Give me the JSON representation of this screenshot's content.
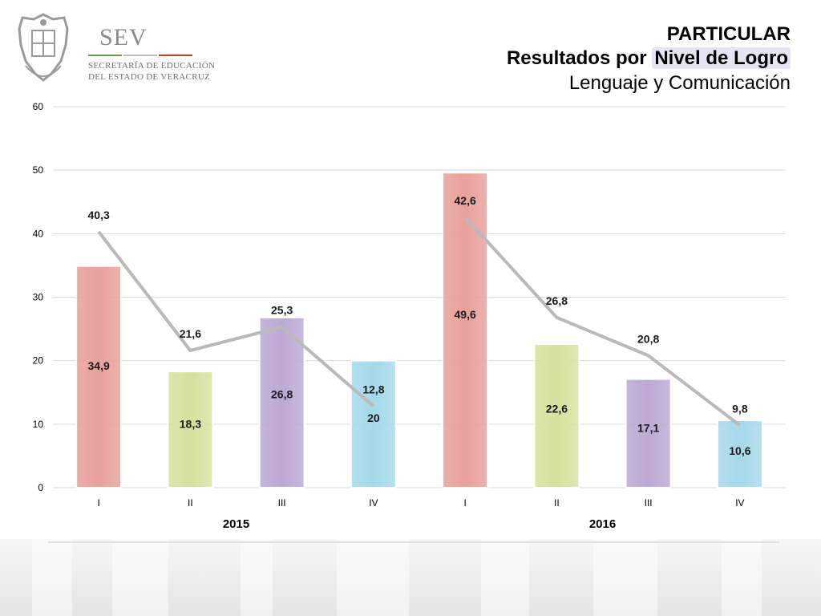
{
  "logo": {
    "name": "SEV",
    "line1": "SECRETARÍA DE EDUCACIÓN",
    "line2": "DEL ESTADO DE VERACRUZ"
  },
  "title": {
    "line1": "PARTICULAR",
    "line2_prefix": "Resultados por ",
    "line2_highlight": "Nivel de Logro",
    "line3": "Lenguaje y Comunicación"
  },
  "colors": {
    "I": "#e8a09b",
    "II": "#d3e29e",
    "III": "#bca8d4",
    "IV": "#a5d9ea",
    "line": "#b9b9b9",
    "grid": "#d9d9d9"
  },
  "chart_data": {
    "type": "bar",
    "ylim": [
      0,
      60
    ],
    "yticks": [
      0,
      10,
      20,
      30,
      40,
      50,
      60
    ],
    "grid": true,
    "groups": [
      "2015",
      "2016"
    ],
    "categories": [
      "I",
      "II",
      "III",
      "IV",
      "I",
      "II",
      "III",
      "IV"
    ],
    "bars": {
      "values": [
        34.9,
        18.3,
        26.8,
        20,
        49.6,
        22.6,
        17.1,
        10.6
      ],
      "labels": [
        "34,9",
        "18,3",
        "26,8",
        "20",
        "49,6",
        "22,6",
        "17,1",
        "10,6"
      ]
    },
    "lines": [
      {
        "group": "2015",
        "values": [
          40.3,
          21.6,
          25.3,
          12.8
        ],
        "labels": [
          "40,3",
          "21,6",
          "25,3",
          "12,8"
        ]
      },
      {
        "group": "2016",
        "values": [
          42.6,
          26.8,
          20.8,
          9.8
        ],
        "labels": [
          "42,6",
          "26,8",
          "20,8",
          "9,8"
        ]
      }
    ]
  }
}
